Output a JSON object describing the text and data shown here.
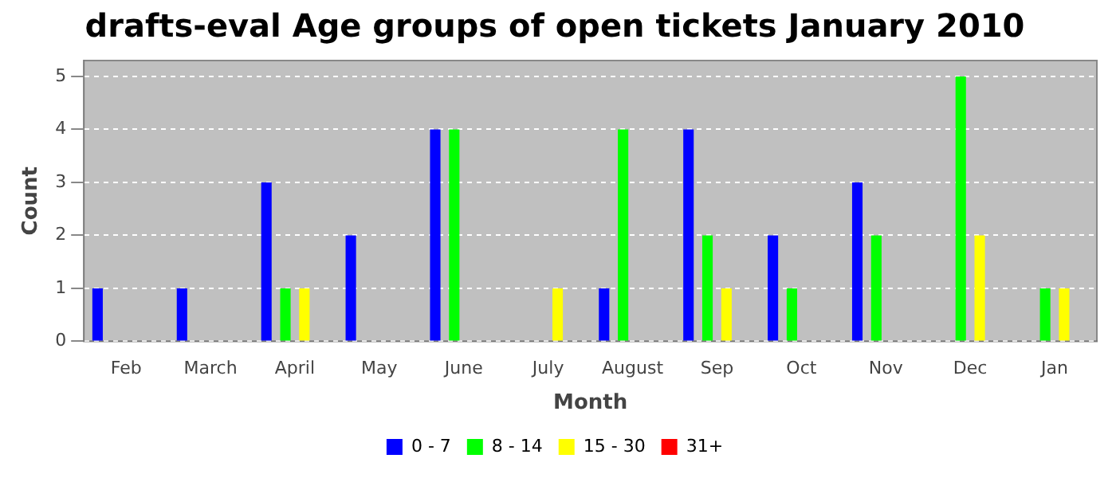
{
  "chart_data": {
    "type": "bar",
    "title": "drafts-eval Age groups of open tickets January 2010",
    "xlabel": "Month",
    "ylabel": "Count",
    "categories": [
      "Feb",
      "March",
      "April",
      "May",
      "June",
      "July",
      "August",
      "Sep",
      "Oct",
      "Nov",
      "Dec",
      "Jan"
    ],
    "series": [
      {
        "name": "0 - 7",
        "color": "#0000ff",
        "values": [
          1,
          1,
          3,
          2,
          4,
          0,
          1,
          4,
          2,
          3,
          0,
          0
        ]
      },
      {
        "name": "8 - 14",
        "color": "#00ff00",
        "values": [
          0,
          0,
          1,
          0,
          4,
          0,
          4,
          2,
          1,
          2,
          5,
          1
        ]
      },
      {
        "name": "15 - 30",
        "color": "#ffff00",
        "values": [
          0,
          0,
          1,
          0,
          0,
          1,
          0,
          1,
          0,
          0,
          2,
          1
        ]
      },
      {
        "name": "31+",
        "color": "#ff0000",
        "values": [
          0,
          0,
          0,
          0,
          0,
          0,
          0,
          0,
          0,
          0,
          0,
          0
        ]
      }
    ],
    "ylim": [
      0,
      5.3
    ],
    "yticks": [
      0,
      1,
      2,
      3,
      4,
      5
    ],
    "grid": "y",
    "legend": "bottom"
  }
}
